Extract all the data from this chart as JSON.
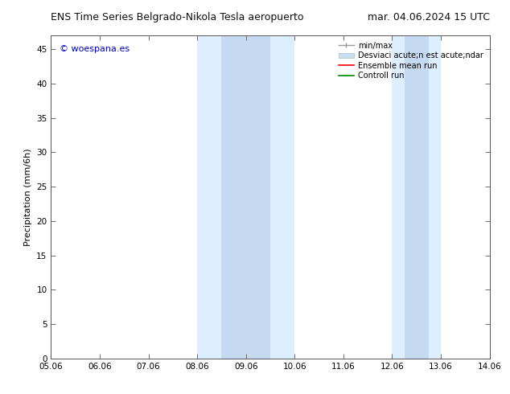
{
  "title_left": "ENS Time Series Belgrado-Nikola Tesla aeropuerto",
  "title_right": "mar. 04.06.2024 15 UTC",
  "ylabel": "Precipitation (mm/6h)",
  "watermark": "© woespana.es",
  "watermark_color": "#0000cc",
  "xlabel_ticks": [
    "05.06",
    "06.06",
    "07.06",
    "08.06",
    "09.06",
    "10.06",
    "11.06",
    "12.06",
    "13.06",
    "14.06"
  ],
  "xlim": [
    0,
    9
  ],
  "ylim": [
    0,
    47
  ],
  "yticks": [
    0,
    5,
    10,
    15,
    20,
    25,
    30,
    35,
    40,
    45
  ],
  "shaded_bands_outer": [
    {
      "x_start": 3.0,
      "x_end": 5.0,
      "color": "#ddeeff"
    },
    {
      "x_start": 7.0,
      "x_end": 8.0,
      "color": "#ddeeff"
    }
  ],
  "shaded_bands_inner": [
    {
      "x_start": 3.5,
      "x_end": 4.5,
      "color": "#c5daf0"
    },
    {
      "x_start": 7.25,
      "x_end": 7.75,
      "color": "#c5daf0"
    }
  ],
  "bg_color": "#ffffff",
  "plot_bg_color": "#ffffff",
  "title_fontsize": 9,
  "axis_fontsize": 8,
  "tick_fontsize": 7.5,
  "legend_label1": "min/max",
  "legend_label2": "Desviaci acute;n est acute;ndar",
  "legend_label3": "Ensemble mean run",
  "legend_label4": "Controll run",
  "legend_color1": "#999999",
  "legend_color2": "#ccddf0",
  "legend_color3": "#ff0000",
  "legend_color4": "#008800"
}
